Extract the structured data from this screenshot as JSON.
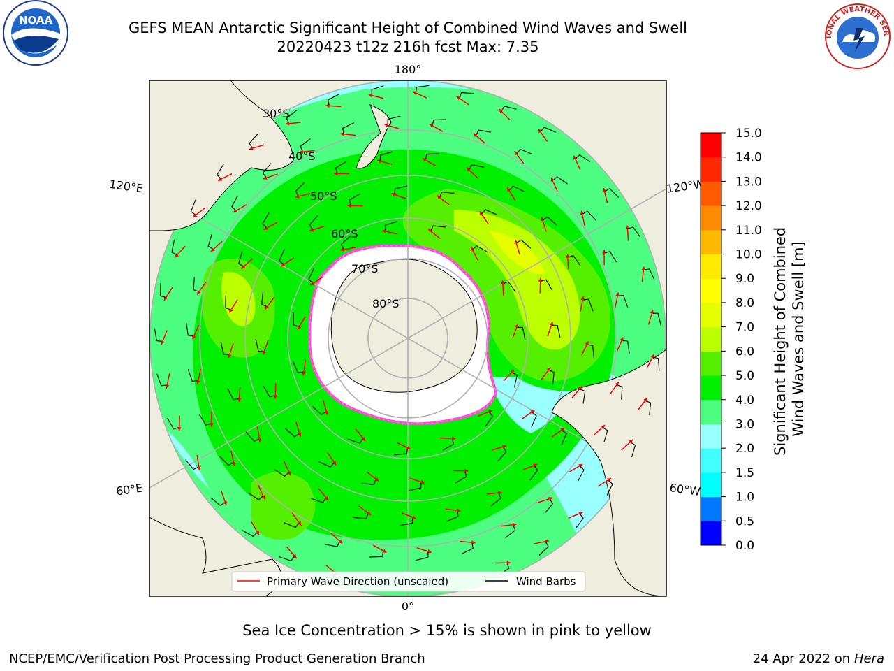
{
  "header": {
    "title_line1": "GEFS MEAN Antarctic Significant Height of Combined Wind Waves and Swell",
    "title_line2": "20220423 t12z 216h fcst   Max: 7.35"
  },
  "map": {
    "projection": "south-polar-stereographic",
    "lon_labels": [
      "180°",
      "120°E",
      "120°W",
      "60°E",
      "60°W",
      "0°"
    ],
    "lat_labels": [
      "30°S",
      "40°S",
      "50°S",
      "60°S",
      "70°S",
      "80°S"
    ],
    "legend": {
      "wave_direction": "Primary Wave Direction (unscaled)",
      "wind_barbs": "Wind Barbs"
    },
    "colors": {
      "land": "#efedde",
      "ice_shelf": "#ffffff",
      "sea_ice_edge": [
        "#ff40ff",
        "#ffa020",
        "#ffe060"
      ],
      "grid": "#b0b0b0",
      "arrow": "#ff0000"
    }
  },
  "colorbar": {
    "label_line1": "Significant Height of Combined",
    "label_line2": "Wind Waves and Swell [m]",
    "ticks": [
      "0.0",
      "0.5",
      "1.0",
      "1.5",
      "2.0",
      "3.0",
      "4.0",
      "5.0",
      "6.0",
      "7.0",
      "8.0",
      "9.0",
      "10.0",
      "11.0",
      "12.0",
      "13.0",
      "14.0",
      "15.0"
    ],
    "colors": [
      "#0000ff",
      "#0078ff",
      "#00ffff",
      "#44ffff",
      "#99ffff",
      "#4dff80",
      "#00f000",
      "#55f000",
      "#bbff00",
      "#e5ff00",
      "#ffff00",
      "#ffea00",
      "#ffb900",
      "#ff8c00",
      "#ff5a00",
      "#ff2800",
      "#ff0000"
    ]
  },
  "footer": {
    "subtitle": "Sea Ice Concentration > 15% is shown in pink to yellow",
    "left": "NCEP/EMC/Verification Post Processing Product Generation Branch",
    "right_date": "24 Apr 2022 on",
    "right_host": "Hera"
  },
  "logos": {
    "noaa_text": "NOAA",
    "nws_text": "NATIONAL WEATHER SERVICE"
  }
}
